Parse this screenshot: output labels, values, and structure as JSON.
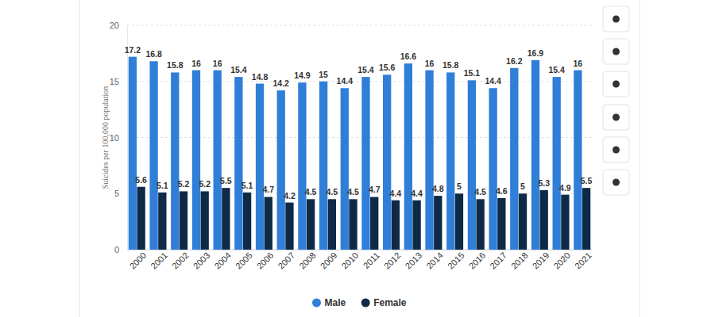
{
  "chart_data": {
    "type": "bar",
    "y_label": "Suicides per 100,000 population",
    "categories": [
      "2000",
      "2001",
      "2002",
      "2003",
      "2004",
      "2005",
      "2006",
      "2007",
      "2008",
      "2009",
      "2010",
      "2011",
      "2012",
      "2013",
      "2014",
      "2015",
      "2016",
      "2017",
      "2018",
      "2019",
      "2020",
      "2021"
    ],
    "series": [
      {
        "name": "Male",
        "color": "#2f7ed8",
        "values": [
          17.2,
          16.8,
          15.8,
          16,
          16,
          15.4,
          14.8,
          14.2,
          14.9,
          15,
          14.4,
          15.4,
          15.6,
          16.6,
          16,
          15.8,
          15.1,
          14.4,
          16.2,
          16.9,
          15.4,
          16
        ]
      },
      {
        "name": "Female",
        "color": "#0e2a47",
        "values": [
          5.6,
          5.1,
          5.2,
          5.2,
          5.5,
          5.1,
          4.7,
          4.2,
          4.5,
          4.5,
          4.5,
          4.7,
          4.4,
          4.4,
          4.8,
          5,
          4.5,
          4.6,
          5,
          5.3,
          4.9,
          5.5
        ]
      }
    ],
    "ylim": [
      0,
      20
    ],
    "yticks": [
      0,
      5,
      10,
      15,
      20
    ],
    "grid": true,
    "legend": "bottom",
    "data_labels": true
  }
}
